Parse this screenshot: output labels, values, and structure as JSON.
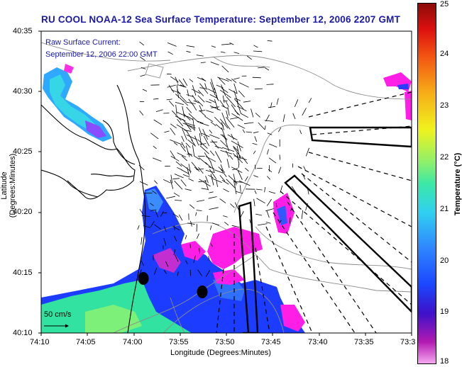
{
  "title": "RU COOL  NOAA-12  Sea Surface Temperature:  September 12, 2006 2207 GMT",
  "legend": {
    "line1": "Raw Surface Current:",
    "line2": "September 12, 2006 22:00 GMT"
  },
  "axes": {
    "xlabel": "Longitude (Degrees:Minutes)",
    "ylabel": "Latitude (Degrees:Minutes)",
    "xticks": [
      "74:10",
      "74:05",
      "74:00",
      "73:55",
      "73:50",
      "73:45",
      "73:40",
      "73:35",
      "73:3"
    ],
    "yticks": [
      "40:35",
      "40:30",
      "40:25",
      "40:20",
      "40:15",
      "40:10"
    ]
  },
  "scale_vector": {
    "label": "50 cm/s"
  },
  "colorbar": {
    "title": "Temperature (°C)",
    "ticks": [
      "25",
      "24",
      "23",
      "22",
      "21",
      "20",
      "19",
      "18"
    ],
    "min": 18,
    "max": 25
  },
  "colors": {
    "title_blue": "#1a1aa6",
    "coast": "#000000",
    "contour": "#8c8c8c",
    "cold": "#ff1ee6",
    "mid": "#1c3cff",
    "warm": "#32e2a0"
  }
}
